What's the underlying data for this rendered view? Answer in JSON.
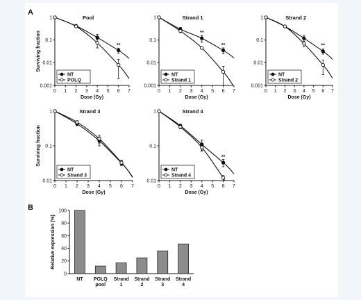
{
  "figure": {
    "panel_a_label": "A",
    "panel_b_label": "B"
  },
  "chart_data": [
    {
      "type": "line",
      "title": "Pool",
      "xlabel": "Dose (Gy)",
      "ylabel": "Surviving fraction",
      "yscale": "log",
      "xlim": [
        0,
        7
      ],
      "ylim": [
        0.001,
        1
      ],
      "xticks": [
        0,
        1,
        2,
        3,
        4,
        5,
        6,
        7
      ],
      "yticks": [
        0.001,
        0.01,
        0.1,
        1
      ],
      "ytick_labels": [
        "0.001",
        "0.01",
        "0.1",
        "1"
      ],
      "legend_position": "bottom-left",
      "series": [
        {
          "name": "NT",
          "marker": "filled",
          "x": [
            0,
            2,
            4,
            6
          ],
          "y": [
            1,
            0.42,
            0.13,
            0.035
          ],
          "err": [
            0,
            0.03,
            0.05,
            0.009
          ]
        },
        {
          "name": "POLQ",
          "marker": "open",
          "x": [
            0,
            2,
            4,
            6
          ],
          "y": [
            1,
            0.4,
            0.075,
            0.008
          ],
          "err": [
            0,
            0.03,
            0.03,
            0.006
          ]
        }
      ],
      "annotations": [
        {
          "text": "**",
          "x": 6,
          "y": 0.065
        }
      ]
    },
    {
      "type": "line",
      "title": "Strand 1",
      "xlabel": "Dose (Gy)",
      "ylabel": "",
      "yscale": "log",
      "xlim": [
        0,
        7
      ],
      "ylim": [
        0.001,
        1
      ],
      "xticks": [
        0,
        1,
        2,
        3,
        4,
        5,
        6,
        7
      ],
      "yticks": [
        0.001,
        0.01,
        0.1,
        1
      ],
      "ytick_labels": [
        "0.001",
        "0.01",
        "0.1",
        "1"
      ],
      "legend_position": "bottom-left",
      "series": [
        {
          "name": "NT",
          "marker": "filled",
          "x": [
            0,
            2,
            4,
            6
          ],
          "y": [
            1,
            0.3,
            0.12,
            0.035
          ],
          "err": [
            0,
            0.06,
            0.04,
            0.01
          ]
        },
        {
          "name": "Strand 1",
          "marker": "open",
          "x": [
            0,
            2,
            4,
            6
          ],
          "y": [
            1,
            0.25,
            0.045,
            0.004
          ],
          "err": [
            0,
            0.04,
            0.006,
            0.003
          ]
        }
      ],
      "annotations": [
        {
          "text": "**",
          "x": 4,
          "y": 0.23
        },
        {
          "text": "**",
          "x": 6,
          "y": 0.065
        }
      ]
    },
    {
      "type": "line",
      "title": "Strand 2",
      "xlabel": "Dose (Gy)",
      "ylabel": "",
      "yscale": "log",
      "xlim": [
        0,
        7
      ],
      "ylim": [
        0.001,
        1
      ],
      "xticks": [
        0,
        1,
        2,
        3,
        4,
        5,
        6,
        7
      ],
      "yticks": [
        0.001,
        0.01,
        0.1,
        1
      ],
      "ytick_labels": [
        "0.001",
        "0.01",
        "0.1",
        "1"
      ],
      "legend_position": "bottom-left",
      "series": [
        {
          "name": "NT",
          "marker": "filled",
          "x": [
            0,
            2,
            4,
            6
          ],
          "y": [
            1,
            0.4,
            0.12,
            0.032
          ],
          "err": [
            0,
            0.03,
            0.04,
            0.008
          ]
        },
        {
          "name": "Strand 2",
          "marker": "open",
          "x": [
            0,
            2,
            4,
            6
          ],
          "y": [
            1,
            0.4,
            0.07,
            0.008
          ],
          "err": [
            0,
            0.03,
            0.02,
            0.005
          ]
        }
      ],
      "annotations": [
        {
          "text": "**",
          "x": 6,
          "y": 0.062
        }
      ]
    },
    {
      "type": "line",
      "title": "Strand 3",
      "xlabel": "Dose (Gy)",
      "ylabel": "Surviving fraction",
      "yscale": "log",
      "xlim": [
        0,
        7
      ],
      "ylim": [
        0.01,
        1
      ],
      "xticks": [
        0,
        1,
        2,
        3,
        4,
        5,
        6,
        7
      ],
      "yticks": [
        0.01,
        0.1,
        1
      ],
      "ytick_labels": [
        "0.01",
        "0.1",
        "1"
      ],
      "legend_position": "bottom-left",
      "series": [
        {
          "name": "NT",
          "marker": "filled",
          "x": [
            0,
            2,
            4,
            6
          ],
          "y": [
            1,
            0.43,
            0.14,
            0.032
          ],
          "err": [
            0,
            0.05,
            0.04,
            0.005
          ]
        },
        {
          "name": "Strand 3",
          "marker": "open",
          "x": [
            0,
            2,
            4,
            6
          ],
          "y": [
            1,
            0.48,
            0.16,
            0.033
          ],
          "err": [
            0,
            0.05,
            0.04,
            0.005
          ]
        }
      ],
      "annotations": []
    },
    {
      "type": "line",
      "title": "Strand 4",
      "xlabel": "Dose (Gy)",
      "ylabel": "",
      "yscale": "log",
      "xlim": [
        0,
        7
      ],
      "ylim": [
        0.01,
        1
      ],
      "xticks": [
        0,
        1,
        2,
        3,
        4,
        5,
        6,
        7
      ],
      "yticks": [
        0.01,
        0.1,
        1
      ],
      "ytick_labels": [
        "0.01",
        "0.1",
        "1"
      ],
      "legend_position": "bottom-left",
      "series": [
        {
          "name": "NT",
          "marker": "filled",
          "x": [
            0,
            2,
            4,
            6
          ],
          "y": [
            1,
            0.38,
            0.11,
            0.033
          ],
          "err": [
            0,
            0.04,
            0.035,
            0.008
          ]
        },
        {
          "name": "Strand 4",
          "marker": "open",
          "x": [
            0,
            2,
            4,
            6
          ],
          "y": [
            1,
            0.35,
            0.09,
            0.012
          ],
          "err": [
            0,
            0.04,
            0.02,
            0.002
          ]
        }
      ],
      "annotations": [
        {
          "text": "**",
          "x": 6,
          "y": 0.05
        }
      ]
    },
    {
      "type": "bar",
      "title": "",
      "xlabel": "",
      "ylabel": "Relative expression (%)",
      "ylim": [
        0,
        100
      ],
      "yticks": [
        0,
        20,
        40,
        60,
        80,
        100
      ],
      "categories": [
        "NT",
        "POLQ\npool",
        "Strand\n1",
        "Strand\n2",
        "Strand\n3",
        "Strand\n4"
      ],
      "values": [
        100,
        12,
        17,
        25,
        36,
        47
      ],
      "bar_color": "#8c8c8c"
    }
  ]
}
